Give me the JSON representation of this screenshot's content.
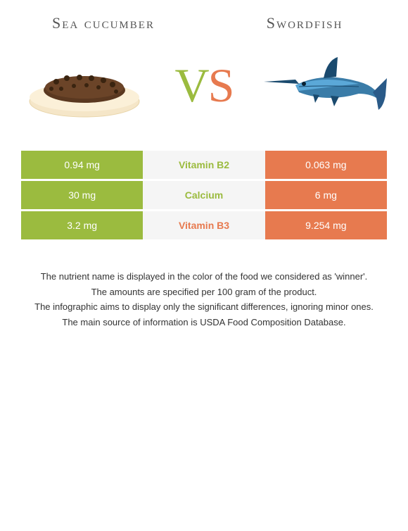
{
  "colors": {
    "left": "#9bbb3f",
    "right": "#e77a4f",
    "mid_bg": "#f5f5f5",
    "title": "#555555",
    "footnote": "#333333",
    "white": "#ffffff"
  },
  "foods": {
    "left": {
      "title": "Sea cucumber"
    },
    "right": {
      "title": "Swordfish"
    }
  },
  "vs": {
    "v": "V",
    "s": "S"
  },
  "nutrients": [
    {
      "label": "Vitamin B2",
      "left": "0.94 mg",
      "right": "0.063 mg",
      "winner": "left"
    },
    {
      "label": "Calcium",
      "left": "30 mg",
      "right": "6 mg",
      "winner": "left"
    },
    {
      "label": "Vitamin B3",
      "left": "3.2 mg",
      "right": "9.254 mg",
      "winner": "right"
    }
  ],
  "footnotes": [
    "The nutrient name is displayed in the color of the food we considered as 'winner'.",
    "The amounts are specified per 100 gram of the product.",
    "The infographic aims to display only the significant differences, ignoring minor ones.",
    "The main source of information is USDA Food Composition Database."
  ]
}
